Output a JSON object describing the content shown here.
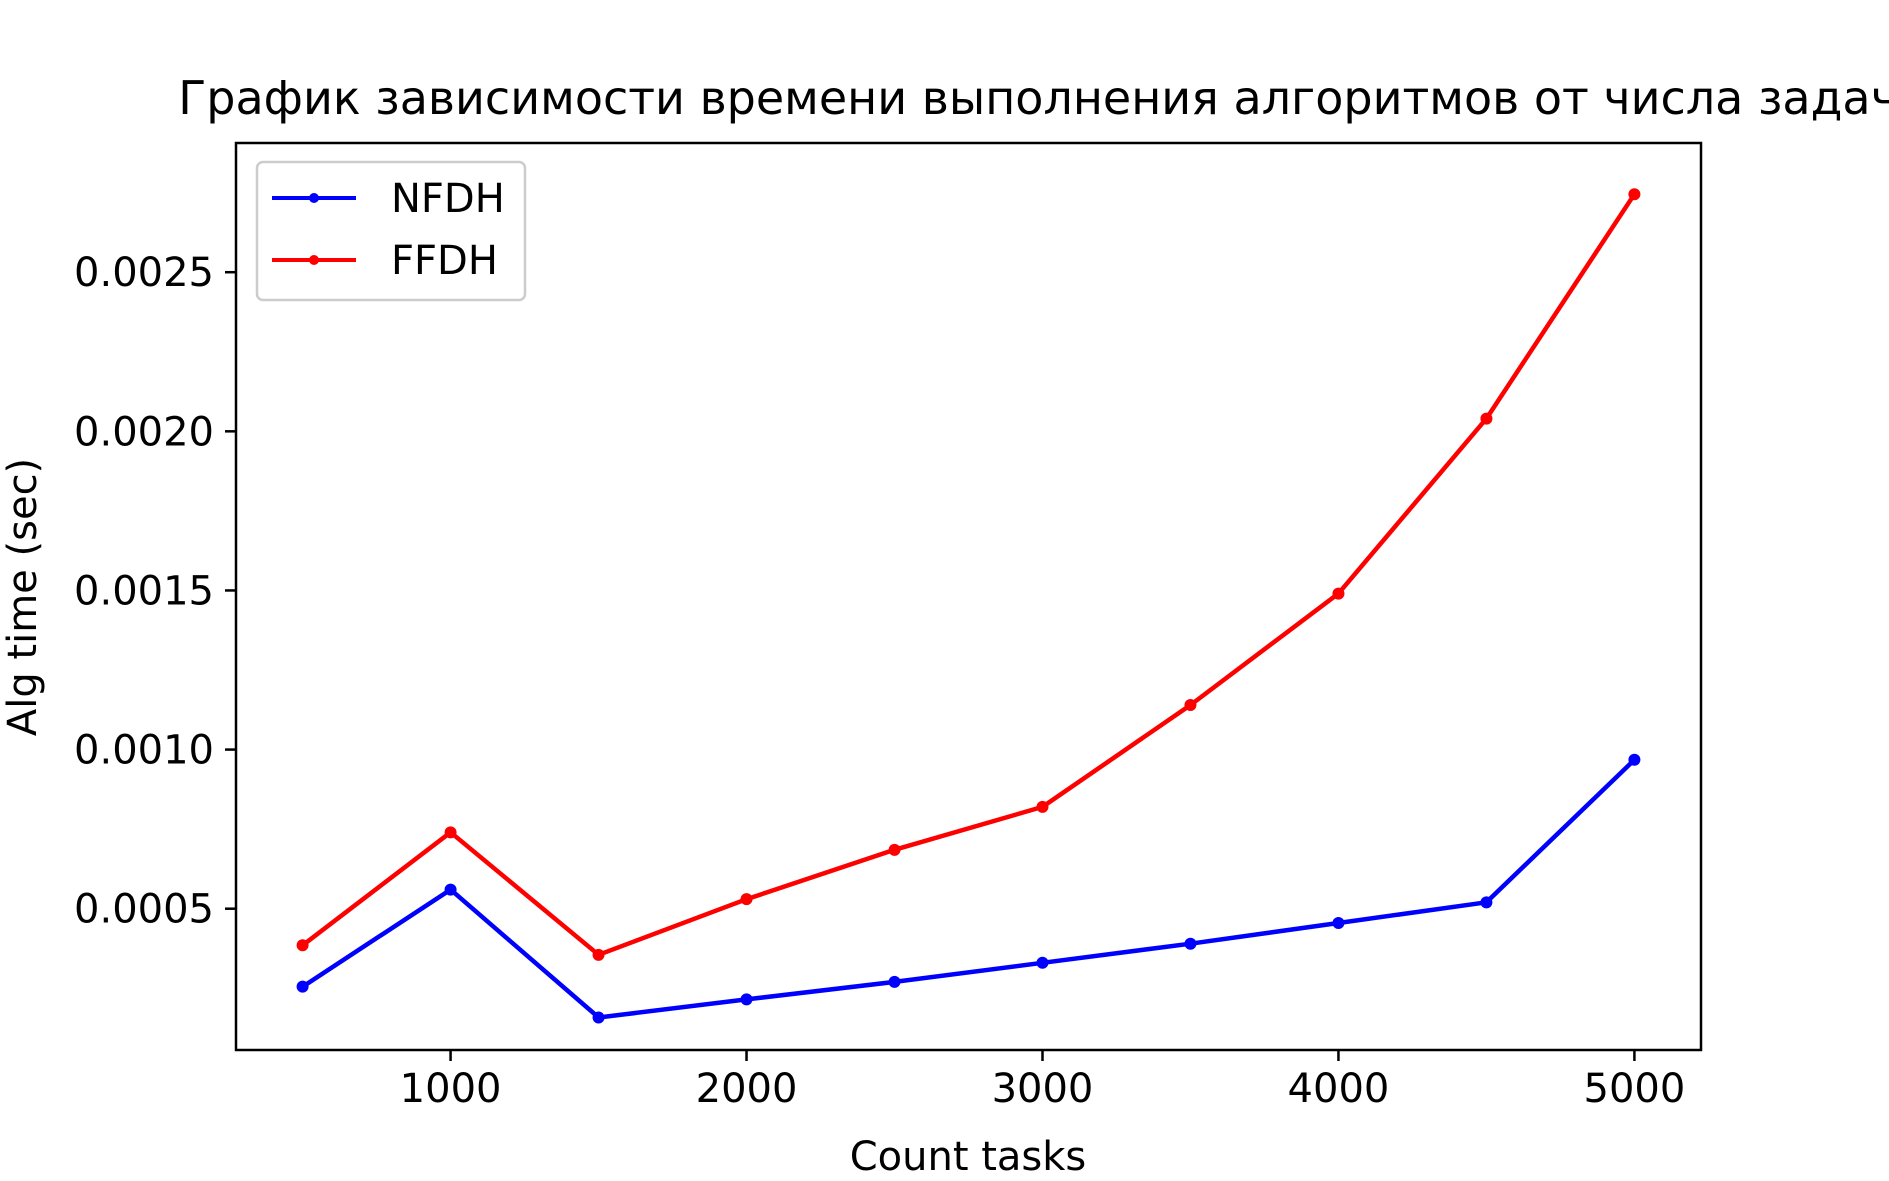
{
  "chart_data": {
    "type": "line",
    "title": "График зависимости времени выполнения алгоритмов от числа задач",
    "xlabel": "Count tasks",
    "ylabel": "Alg time (sec)",
    "xlim": [
      275,
      5225
    ],
    "ylim": [
      5.6e-05,
      0.002906
    ],
    "xticks": [
      1000,
      2000,
      3000,
      4000,
      5000
    ],
    "xtick_labels": [
      "1000",
      "2000",
      "3000",
      "4000",
      "5000"
    ],
    "yticks": [
      0.0005,
      0.001,
      0.0015,
      0.002,
      0.0025
    ],
    "ytick_labels": [
      "0.0005",
      "0.0010",
      "0.0015",
      "0.0020",
      "0.0025"
    ],
    "grid": false,
    "legend_position": "top-left",
    "x": [
      500,
      1000,
      1500,
      2000,
      2500,
      3000,
      3500,
      4000,
      4500,
      5000
    ],
    "series": [
      {
        "name": "NFDH",
        "color": "#0000ff",
        "values": [
          0.000255,
          0.00056,
          0.000158,
          0.000215,
          0.00027,
          0.00033,
          0.00039,
          0.000455,
          0.00052,
          0.000968
        ]
      },
      {
        "name": "FFDH",
        "color": "#ff0000",
        "values": [
          0.000385,
          0.00074,
          0.000355,
          0.00053,
          0.000685,
          0.00082,
          0.00114,
          0.00149,
          0.00204,
          0.002745
        ]
      }
    ]
  }
}
